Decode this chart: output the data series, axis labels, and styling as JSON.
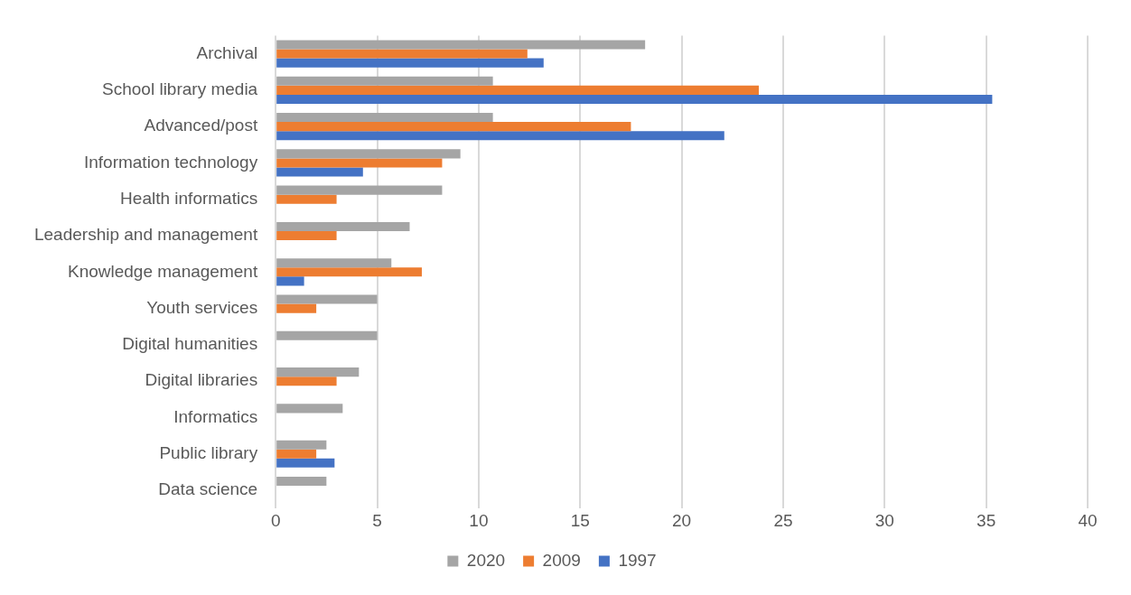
{
  "chart_data": {
    "type": "bar",
    "orientation": "horizontal",
    "categories": [
      "Archival",
      "School library media",
      "Advanced/post",
      "Information technology",
      "Health informatics",
      "Leadership and management",
      "Knowledge management",
      "Youth services",
      "Digital humanities",
      "Digital libraries",
      "Informatics",
      "Public library",
      "Data science"
    ],
    "series": [
      {
        "name": "2020",
        "color": "#a5a5a5",
        "values": [
          18.2,
          10.7,
          10.7,
          9.1,
          8.2,
          6.6,
          5.7,
          5.0,
          5.0,
          4.1,
          3.3,
          2.5,
          2.5
        ]
      },
      {
        "name": "2009",
        "color": "#ed7d31",
        "values": [
          12.4,
          23.8,
          17.5,
          8.2,
          3.0,
          3.0,
          7.2,
          2.0,
          null,
          3.0,
          null,
          2.0,
          null
        ]
      },
      {
        "name": "1997",
        "color": "#4472c4",
        "values": [
          13.2,
          35.3,
          22.1,
          4.3,
          null,
          null,
          1.4,
          null,
          null,
          null,
          null,
          2.9,
          null
        ]
      }
    ],
    "xlim": [
      0,
      40
    ],
    "xticks": [
      0,
      5,
      10,
      15,
      20,
      25,
      30,
      35,
      40
    ],
    "grid": "x",
    "legend": "bottom"
  }
}
